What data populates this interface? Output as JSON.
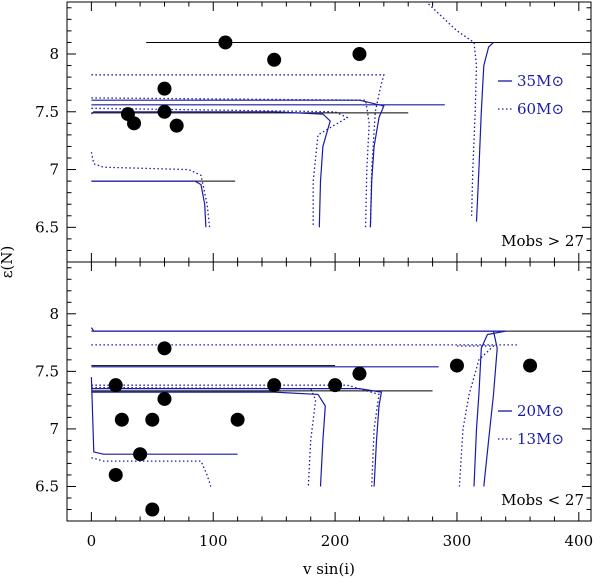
{
  "chart_data": {
    "type": "scatter",
    "xlabel": "v sin(i)",
    "ylabel": "ε(N)",
    "xlim": [
      -20,
      410
    ],
    "x_ticks": [
      0,
      100,
      200,
      300,
      400
    ],
    "y_ticks": [
      6.5,
      7,
      7.5,
      8
    ],
    "panels": [
      {
        "id": "top",
        "ylim": [
          6.2,
          8.45
        ],
        "label": "Mobs > 27",
        "legend": [
          {
            "style": "solid",
            "text": "35M⊙"
          },
          {
            "style": "dotted",
            "text": "60M⊙"
          }
        ],
        "observations": [
          {
            "x": 110,
            "y": 8.1
          },
          {
            "x": 150,
            "y": 7.95
          },
          {
            "x": 220,
            "y": 8.0
          },
          {
            "x": 60,
            "y": 7.7
          },
          {
            "x": 60,
            "y": 7.5
          },
          {
            "x": 30,
            "y": 7.48
          },
          {
            "x": 35,
            "y": 7.4
          },
          {
            "x": 70,
            "y": 7.38
          }
        ],
        "reference_lines": [
          {
            "y": 8.1,
            "x": [
              45,
              410
            ],
            "color": "#000000"
          },
          {
            "y": 7.49,
            "x": [
              0,
              260
            ],
            "color": "#000000"
          },
          {
            "y": 6.9,
            "x": [
              0,
              118
            ],
            "color": "#000000"
          }
        ],
        "tracks": [
          {
            "style": "solid",
            "points": [
              [
                0,
                6.9
              ],
              [
                85,
                6.9
              ],
              [
                90,
                6.87
              ],
              [
                93,
                6.7
              ],
              [
                94,
                6.5
              ]
            ]
          },
          {
            "style": "dotted",
            "points": [
              [
                0,
                7.15
              ],
              [
                2,
                7.05
              ],
              [
                10,
                7.02
              ],
              [
                80,
                7.0
              ],
              [
                90,
                6.95
              ],
              [
                95,
                6.7
              ],
              [
                97,
                6.5
              ]
            ]
          },
          {
            "style": "solid",
            "points": [
              [
                0,
                7.48
              ],
              [
                2,
                7.5
              ],
              [
                150,
                7.5
              ],
              [
                190,
                7.48
              ],
              [
                196,
                7.42
              ],
              [
                190,
                7.2
              ],
              [
                188,
                6.9
              ],
              [
                187,
                6.5
              ]
            ]
          },
          {
            "style": "dotted",
            "points": [
              [
                0,
                7.53
              ],
              [
                200,
                7.5
              ],
              [
                210,
                7.45
              ],
              [
                186,
                7.3
              ],
              [
                182,
                6.9
              ],
              [
                182,
                6.5
              ]
            ]
          },
          {
            "style": "solid",
            "points": [
              [
                0,
                7.56
              ],
              [
                290,
                7.56
              ]
            ]
          },
          {
            "style": "solid",
            "points": [
              [
                0,
                7.6
              ],
              [
                220,
                7.6
              ],
              [
                240,
                7.55
              ],
              [
                236,
                7.45
              ],
              [
                232,
                7.2
              ],
              [
                230,
                6.9
              ],
              [
                229,
                6.5
              ]
            ]
          },
          {
            "style": "dotted",
            "points": [
              [
                0,
                7.62
              ],
              [
                225,
                7.6
              ],
              [
                228,
                7.4
              ],
              [
                226,
                7.0
              ],
              [
                225,
                6.5
              ]
            ]
          },
          {
            "style": "dotted",
            "points": [
              [
                0,
                7.82
              ],
              [
                240,
                7.82
              ],
              [
                237,
                7.7
              ],
              [
                233,
                7.5
              ],
              [
                230,
                7.0
              ],
              [
                229,
                6.5
              ]
            ]
          },
          {
            "style": "solid",
            "points": [
              [
                330,
                8.1
              ],
              [
                326,
                8.06
              ],
              [
                322,
                7.9
              ],
              [
                320,
                7.5
              ],
              [
                318,
                7.0
              ],
              [
                316,
                6.55
              ]
            ]
          },
          {
            "style": "dotted",
            "points": [
              [
                260,
                8.6
              ],
              [
                285,
                8.35
              ],
              [
                300,
                8.2
              ],
              [
                314,
                8.1
              ],
              [
                316,
                7.9
              ],
              [
                315,
                7.5
              ],
              [
                313,
                7.0
              ],
              [
                312,
                6.6
              ]
            ]
          }
        ]
      },
      {
        "id": "bottom",
        "ylim": [
          6.2,
          8.45
        ],
        "label": "Mobs < 27",
        "legend": [
          {
            "style": "solid",
            "text": "20M⊙"
          },
          {
            "style": "dotted",
            "text": "13M⊙"
          }
        ],
        "observations": [
          {
            "x": 60,
            "y": 7.7
          },
          {
            "x": 20,
            "y": 7.38
          },
          {
            "x": 60,
            "y": 7.26
          },
          {
            "x": 25,
            "y": 7.08
          },
          {
            "x": 50,
            "y": 7.08
          },
          {
            "x": 120,
            "y": 7.08
          },
          {
            "x": 40,
            "y": 6.78
          },
          {
            "x": 20,
            "y": 6.6
          },
          {
            "x": 50,
            "y": 6.3
          },
          {
            "x": 150,
            "y": 7.38
          },
          {
            "x": 200,
            "y": 7.38
          },
          {
            "x": 220,
            "y": 7.48
          },
          {
            "x": 300,
            "y": 7.55
          },
          {
            "x": 360,
            "y": 7.55
          }
        ],
        "reference_lines": [
          {
            "y": 7.33,
            "x": [
              0,
              280
            ],
            "color": "#000000"
          },
          {
            "y": 7.55,
            "x": [
              0,
              200
            ],
            "color": "#000000"
          },
          {
            "y": 7.85,
            "x": [
              0,
              410
            ],
            "color": "#000000"
          }
        ],
        "tracks": [
          {
            "style": "solid",
            "points": [
              [
                0,
                7.45
              ],
              [
                2,
                6.8
              ],
              [
                10,
                6.78
              ],
              [
                95,
                6.78
              ],
              [
                120,
                6.78
              ]
            ]
          },
          {
            "style": "dotted",
            "points": [
              [
                0,
                6.75
              ],
              [
                10,
                6.72
              ],
              [
                90,
                6.72
              ],
              [
                95,
                6.6
              ],
              [
                98,
                6.5
              ]
            ]
          },
          {
            "style": "solid",
            "points": [
              [
                0,
                7.32
              ],
              [
                150,
                7.32
              ],
              [
                186,
                7.3
              ],
              [
                192,
                7.2
              ],
              [
                190,
                6.9
              ],
              [
                188,
                6.5
              ]
            ]
          },
          {
            "style": "dotted",
            "points": [
              [
                0,
                7.36
              ],
              [
                180,
                7.35
              ],
              [
                184,
                7.25
              ],
              [
                180,
                6.9
              ],
              [
                178,
                6.5
              ]
            ]
          },
          {
            "style": "solid",
            "points": [
              [
                0,
                7.35
              ],
              [
                220,
                7.35
              ],
              [
                238,
                7.32
              ],
              [
                236,
                7.2
              ],
              [
                234,
                6.9
              ],
              [
                232,
                6.5
              ]
            ]
          },
          {
            "style": "dotted",
            "points": [
              [
                0,
                7.38
              ],
              [
                210,
                7.38
              ],
              [
                236,
                7.3
              ],
              [
                232,
                7.0
              ],
              [
                230,
                6.5
              ]
            ]
          },
          {
            "style": "solid",
            "points": [
              [
                0,
                7.54
              ],
              [
                285,
                7.54
              ]
            ]
          },
          {
            "style": "dotted",
            "points": [
              [
                0,
                7.73
              ],
              [
                350,
                7.73
              ]
            ]
          },
          {
            "style": "solid",
            "points": [
              [
                0,
                7.88
              ],
              [
                2,
                7.85
              ],
              [
                340,
                7.85
              ],
              [
                325,
                7.82
              ],
              [
                320,
                7.7
              ],
              [
                318,
                7.3
              ],
              [
                316,
                7.0
              ],
              [
                314,
                6.5
              ]
            ]
          },
          {
            "style": "solid",
            "points": [
              [
                330,
                7.85
              ],
              [
                333,
                7.7
              ],
              [
                330,
                7.3
              ],
              [
                326,
                6.9
              ],
              [
                322,
                6.5
              ]
            ]
          },
          {
            "style": "dotted",
            "points": [
              [
                300,
                7.72
              ],
              [
                330,
                7.72
              ],
              [
                318,
                7.6
              ],
              [
                310,
                7.3
              ],
              [
                305,
                7.0
              ],
              [
                302,
                6.5
              ]
            ]
          }
        ]
      }
    ]
  }
}
